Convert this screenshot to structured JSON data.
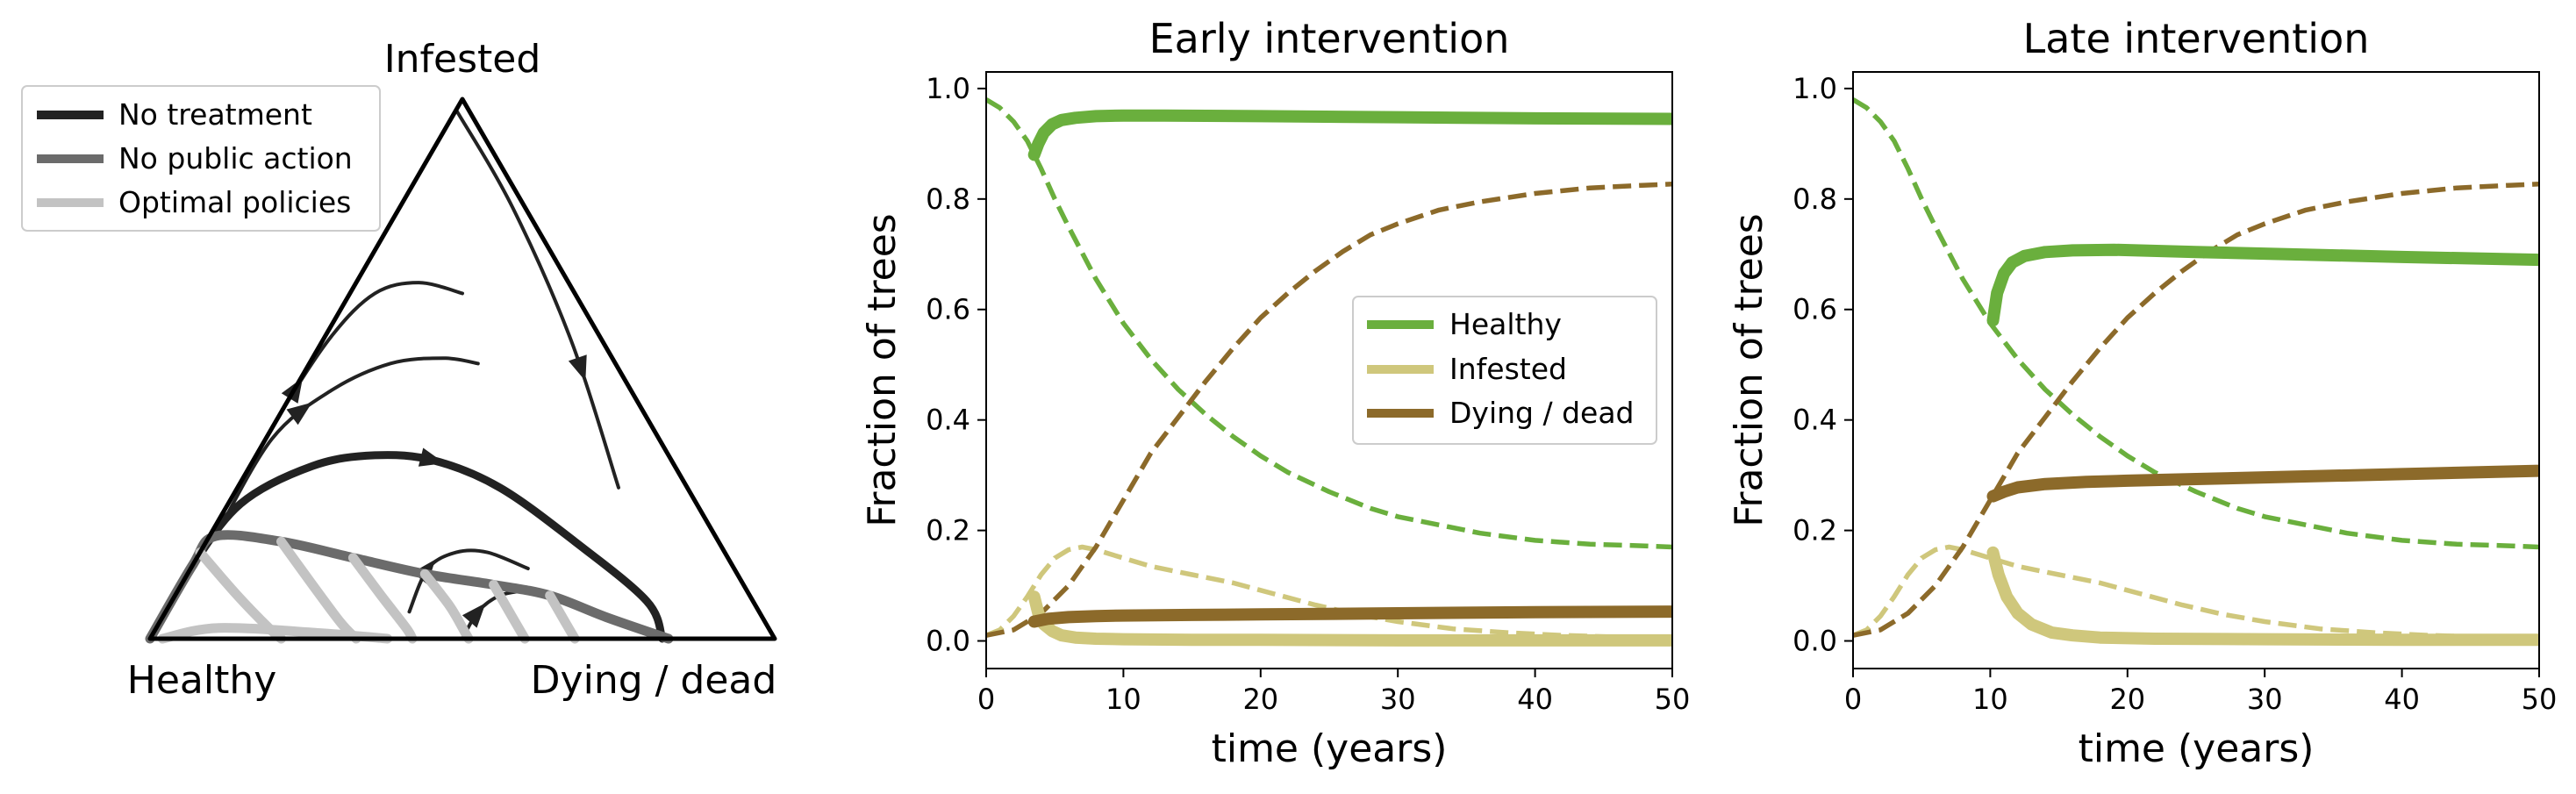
{
  "colors": {
    "healthy": "#6aaf3d",
    "infested": "#cfc77c",
    "dying": "#8c6a2a",
    "no_treatment": "#222222",
    "no_public_action": "#6b6b6b",
    "optimal_policies": "#c3c3c3"
  },
  "chart_data": [
    {
      "type": "ternary",
      "vertex_labels": {
        "top": "Infested",
        "left": "Healthy",
        "right": "Dying / dead"
      },
      "legend": {
        "placement": "top-left",
        "entries": [
          {
            "label": "No treatment",
            "color_key": "no_treatment"
          },
          {
            "label": "No public action",
            "color_key": "no_public_action"
          },
          {
            "label": "Optimal policies",
            "color_key": "optimal_policies"
          }
        ]
      },
      "series": [
        {
          "style": "thin",
          "arrow_at": 0.35,
          "points": [
            [
              0.72,
              0.28,
              0.0
            ],
            [
              0.58,
              0.42,
              0.0
            ],
            [
              0.43,
              0.56,
              0.01
            ],
            [
              0.32,
              0.64,
              0.04
            ],
            [
              0.24,
              0.66,
              0.1
            ],
            [
              0.18,
              0.64,
              0.18
            ]
          ]
        },
        {
          "style": "thin",
          "arrow_at": 0.45,
          "points": [
            [
              0.8,
              0.19,
              0.01
            ],
            [
              0.62,
              0.37,
              0.01
            ],
            [
              0.48,
              0.46,
              0.06
            ],
            [
              0.36,
              0.51,
              0.13
            ],
            [
              0.27,
              0.52,
              0.21
            ],
            [
              0.22,
              0.51,
              0.27
            ]
          ]
        },
        {
          "style": "no_treatment",
          "arrow_at": 0.55,
          "points": [
            [
              1.0,
              0.0,
              0.0
            ],
            [
              0.88,
              0.13,
              0.0
            ],
            [
              0.73,
              0.25,
              0.02
            ],
            [
              0.58,
              0.32,
              0.1
            ],
            [
              0.47,
              0.34,
              0.19
            ],
            [
              0.38,
              0.33,
              0.29
            ],
            [
              0.3,
              0.28,
              0.42
            ],
            [
              0.23,
              0.18,
              0.59
            ],
            [
              0.17,
              0.07,
              0.76
            ],
            [
              0.18,
              0.0,
              0.82
            ]
          ]
        },
        {
          "style": "thin",
          "arrow_at": 0.7,
          "points": [
            [
              0.02,
              0.98,
              0.0
            ],
            [
              0.02,
              0.8,
              0.18
            ],
            [
              0.05,
              0.55,
              0.4
            ],
            [
              0.11,
              0.28,
              0.61
            ]
          ]
        },
        {
          "style": "thin",
          "arrow_at": 0.3,
          "points": [
            [
              0.56,
              0.05,
              0.39
            ],
            [
              0.49,
              0.13,
              0.38
            ],
            [
              0.43,
              0.16,
              0.41
            ],
            [
              0.38,
              0.16,
              0.46
            ],
            [
              0.33,
              0.13,
              0.54
            ]
          ]
        },
        {
          "style": "thin",
          "arrow_at": 0.35,
          "points": [
            [
              0.5,
              0.0,
              0.5
            ],
            [
              0.45,
              0.05,
              0.5
            ],
            [
              0.4,
              0.08,
              0.52
            ],
            [
              0.35,
              0.09,
              0.56
            ]
          ]
        },
        {
          "style": "no_public_action",
          "arrow_at": null,
          "points": [
            [
              1.0,
              0.0,
              0.0
            ],
            [
              0.88,
              0.14,
              0.0
            ],
            [
              0.8,
              0.19,
              0.01
            ],
            [
              0.7,
              0.18,
              0.12
            ],
            [
              0.6,
              0.15,
              0.25
            ],
            [
              0.5,
              0.12,
              0.38
            ],
            [
              0.4,
              0.1,
              0.5
            ],
            [
              0.32,
              0.08,
              0.6
            ],
            [
              0.25,
              0.04,
              0.71
            ],
            [
              0.17,
              0.0,
              0.83
            ]
          ]
        },
        {
          "style": "optimal_policies",
          "arrow_at": null,
          "points": [
            [
              0.98,
              0.0,
              0.02
            ],
            [
              0.88,
              0.02,
              0.1
            ],
            [
              0.72,
              0.01,
              0.27
            ],
            [
              0.62,
              0.0,
              0.38
            ]
          ]
        },
        {
          "style": "optimal_policies",
          "arrow_at": null,
          "points": [
            [
              0.84,
              0.16,
              0.0
            ],
            [
              0.82,
              0.08,
              0.1
            ],
            [
              0.8,
              0.02,
              0.18
            ],
            [
              0.79,
              0.0,
              0.21
            ]
          ]
        },
        {
          "style": "optimal_policies",
          "arrow_at": null,
          "points": [
            [
              0.7,
              0.18,
              0.12
            ],
            [
              0.69,
              0.1,
              0.21
            ],
            [
              0.68,
              0.03,
              0.29
            ],
            [
              0.67,
              0.0,
              0.33
            ]
          ]
        },
        {
          "style": "optimal_policies",
          "arrow_at": null,
          "points": [
            [
              0.6,
              0.15,
              0.25
            ],
            [
              0.59,
              0.08,
              0.33
            ],
            [
              0.58,
              0.02,
              0.4
            ],
            [
              0.58,
              0.0,
              0.42
            ]
          ]
        },
        {
          "style": "optimal_policies",
          "arrow_at": null,
          "points": [
            [
              0.5,
              0.12,
              0.38
            ],
            [
              0.49,
              0.06,
              0.45
            ],
            [
              0.49,
              0.01,
              0.5
            ],
            [
              0.49,
              0.0,
              0.51
            ]
          ]
        },
        {
          "style": "optimal_policies",
          "arrow_at": null,
          "points": [
            [
              0.4,
              0.1,
              0.5
            ],
            [
              0.4,
              0.05,
              0.55
            ],
            [
              0.4,
              0.01,
              0.59
            ],
            [
              0.4,
              0.0,
              0.6
            ]
          ]
        },
        {
          "style": "optimal_policies",
          "arrow_at": null,
          "points": [
            [
              0.32,
              0.08,
              0.6
            ],
            [
              0.32,
              0.04,
              0.64
            ],
            [
              0.32,
              0.0,
              0.68
            ]
          ]
        }
      ]
    },
    {
      "type": "line",
      "title": "Early intervention",
      "xlabel": "time (years)",
      "ylabel": "Fraction of trees",
      "xlim": [
        0,
        50
      ],
      "ylim": [
        -0.05,
        1.03
      ],
      "x_ticks": [
        "0",
        "10",
        "20",
        "30",
        "40",
        "50"
      ],
      "y_ticks": [
        "0.0",
        "0.2",
        "0.4",
        "0.6",
        "0.8",
        "1.0"
      ],
      "legend": {
        "placement": "center-right",
        "entries": [
          {
            "label": "Healthy",
            "color_key": "healthy"
          },
          {
            "label": "Infested",
            "color_key": "infested"
          },
          {
            "label": "Dying / dead",
            "color_key": "dying"
          }
        ]
      },
      "series": [
        {
          "color_key": "healthy",
          "style": "dashed",
          "x": [
            0,
            1,
            2,
            3,
            4,
            5,
            6,
            8,
            10,
            12,
            14,
            16,
            18,
            20,
            22,
            25,
            28,
            30,
            33,
            36,
            40,
            44,
            48,
            50
          ],
          "y": [
            0.98,
            0.965,
            0.94,
            0.905,
            0.855,
            0.8,
            0.75,
            0.655,
            0.575,
            0.51,
            0.455,
            0.41,
            0.37,
            0.335,
            0.305,
            0.27,
            0.24,
            0.225,
            0.21,
            0.195,
            0.182,
            0.175,
            0.172,
            0.17
          ]
        },
        {
          "color_key": "infested",
          "style": "dashed",
          "x": [
            0,
            1,
            2,
            3,
            4,
            5,
            6,
            7,
            8,
            10,
            12,
            15,
            18,
            21,
            24,
            27,
            30,
            34,
            38,
            42,
            46,
            50
          ],
          "y": [
            0.01,
            0.02,
            0.045,
            0.08,
            0.12,
            0.15,
            0.165,
            0.17,
            0.165,
            0.15,
            0.135,
            0.12,
            0.105,
            0.085,
            0.065,
            0.048,
            0.035,
            0.022,
            0.015,
            0.01,
            0.007,
            0.005
          ]
        },
        {
          "color_key": "dying",
          "style": "dashed",
          "x": [
            0,
            2,
            4,
            6,
            8,
            10,
            12,
            14,
            16,
            18,
            20,
            22,
            24,
            26,
            28,
            30,
            33,
            36,
            40,
            44,
            48,
            50
          ],
          "y": [
            0.01,
            0.02,
            0.05,
            0.1,
            0.17,
            0.255,
            0.34,
            0.405,
            0.47,
            0.53,
            0.585,
            0.63,
            0.67,
            0.705,
            0.735,
            0.755,
            0.78,
            0.795,
            0.81,
            0.82,
            0.825,
            0.827
          ]
        },
        {
          "color_key": "healthy",
          "style": "solid",
          "x": [
            3.5,
            3.8,
            4.2,
            4.8,
            5.5,
            6.5,
            8,
            10,
            13,
            20,
            30,
            40,
            50
          ],
          "y": [
            0.88,
            0.9,
            0.92,
            0.935,
            0.943,
            0.947,
            0.95,
            0.951,
            0.951,
            0.95,
            0.948,
            0.946,
            0.945
          ]
        },
        {
          "color_key": "infested",
          "style": "solid",
          "x": [
            3.5,
            3.8,
            4.2,
            4.8,
            5.5,
            6.5,
            8,
            10,
            15,
            20,
            30,
            40,
            50
          ],
          "y": [
            0.08,
            0.05,
            0.03,
            0.018,
            0.01,
            0.006,
            0.004,
            0.003,
            0.002,
            0.002,
            0.001,
            0.001,
            0.001
          ]
        },
        {
          "color_key": "dying",
          "style": "solid",
          "x": [
            3.5,
            4.5,
            6,
            8,
            10,
            15,
            20,
            30,
            40,
            50
          ],
          "y": [
            0.035,
            0.04,
            0.043,
            0.045,
            0.046,
            0.047,
            0.048,
            0.05,
            0.052,
            0.053
          ]
        }
      ]
    },
    {
      "type": "line",
      "title": "Late intervention",
      "xlabel": "time (years)",
      "ylabel": "Fraction of trees",
      "xlim": [
        0,
        50
      ],
      "ylim": [
        -0.05,
        1.03
      ],
      "x_ticks": [
        "0",
        "10",
        "20",
        "30",
        "40",
        "50"
      ],
      "y_ticks": [
        "0.0",
        "0.2",
        "0.4",
        "0.6",
        "0.8",
        "1.0"
      ],
      "series": [
        {
          "color_key": "healthy",
          "style": "dashed",
          "x": [
            0,
            1,
            2,
            3,
            4,
            5,
            6,
            8,
            10,
            12,
            14,
            16,
            18,
            20,
            22,
            25,
            28,
            30,
            33,
            36,
            40,
            44,
            48,
            50
          ],
          "y": [
            0.98,
            0.965,
            0.94,
            0.905,
            0.855,
            0.8,
            0.75,
            0.655,
            0.575,
            0.51,
            0.455,
            0.41,
            0.37,
            0.335,
            0.305,
            0.27,
            0.24,
            0.225,
            0.21,
            0.195,
            0.182,
            0.175,
            0.172,
            0.17
          ]
        },
        {
          "color_key": "infested",
          "style": "dashed",
          "x": [
            0,
            1,
            2,
            3,
            4,
            5,
            6,
            7,
            8,
            10,
            12,
            15,
            18,
            21,
            24,
            27,
            30,
            34,
            38,
            42,
            46,
            50
          ],
          "y": [
            0.01,
            0.02,
            0.045,
            0.08,
            0.12,
            0.15,
            0.165,
            0.17,
            0.165,
            0.15,
            0.135,
            0.12,
            0.105,
            0.085,
            0.065,
            0.048,
            0.035,
            0.022,
            0.015,
            0.01,
            0.007,
            0.005
          ]
        },
        {
          "color_key": "dying",
          "style": "dashed",
          "x": [
            0,
            2,
            4,
            6,
            8,
            10,
            12,
            14,
            16,
            18,
            20,
            22,
            24,
            26,
            28,
            30,
            33,
            36,
            40,
            44,
            48,
            50
          ],
          "y": [
            0.01,
            0.02,
            0.05,
            0.1,
            0.17,
            0.255,
            0.34,
            0.405,
            0.47,
            0.53,
            0.585,
            0.63,
            0.67,
            0.705,
            0.735,
            0.755,
            0.78,
            0.795,
            0.81,
            0.82,
            0.825,
            0.827
          ]
        },
        {
          "color_key": "healthy",
          "style": "solid",
          "x": [
            10.2,
            10.5,
            11,
            11.6,
            12.5,
            14,
            16,
            19,
            25,
            30,
            40,
            50
          ],
          "y": [
            0.58,
            0.63,
            0.665,
            0.685,
            0.697,
            0.704,
            0.707,
            0.708,
            0.704,
            0.701,
            0.695,
            0.69
          ]
        },
        {
          "color_key": "infested",
          "style": "solid",
          "x": [
            10.2,
            10.6,
            11.2,
            12,
            13,
            14.5,
            16,
            18,
            22,
            30,
            40,
            50
          ],
          "y": [
            0.16,
            0.12,
            0.08,
            0.05,
            0.03,
            0.015,
            0.01,
            0.006,
            0.004,
            0.003,
            0.002,
            0.002
          ]
        },
        {
          "color_key": "dying",
          "style": "solid",
          "x": [
            10.2,
            11,
            12,
            14,
            17,
            20,
            25,
            30,
            40,
            50
          ],
          "y": [
            0.262,
            0.27,
            0.278,
            0.284,
            0.288,
            0.29,
            0.293,
            0.296,
            0.302,
            0.308
          ]
        }
      ]
    }
  ]
}
